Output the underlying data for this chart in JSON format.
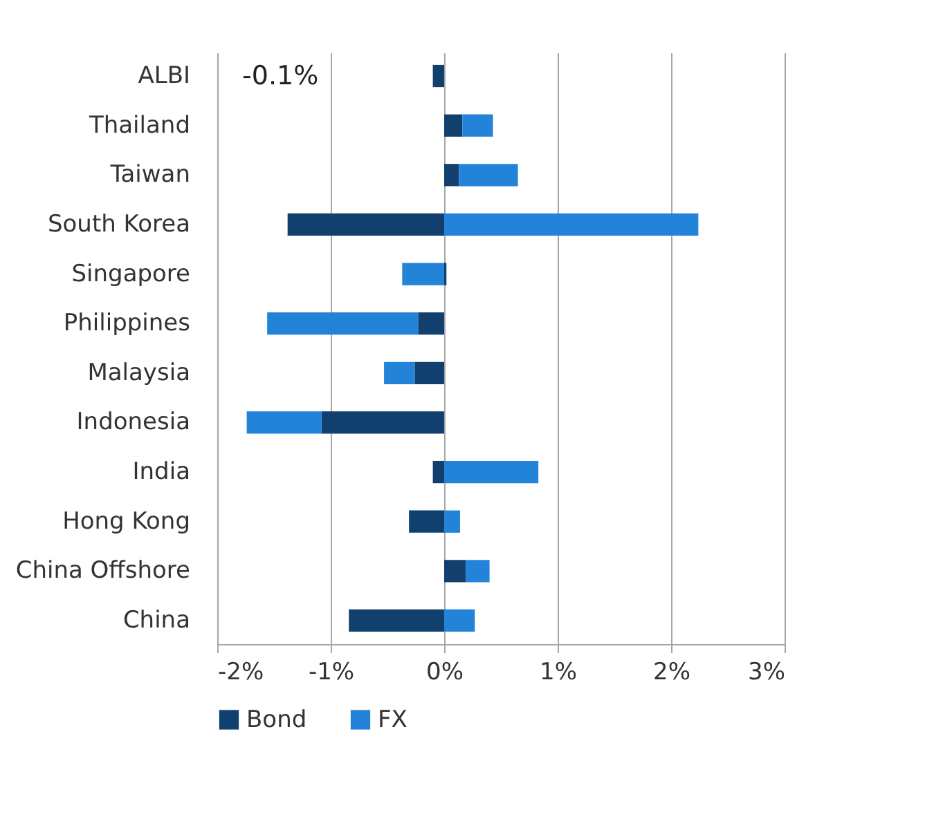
{
  "chart_data": {
    "type": "bar",
    "orientation": "horizontal",
    "stacked": true,
    "categories": [
      "ALBI",
      "Thailand",
      "Taiwan",
      "South Korea",
      "Singapore",
      "Philippines",
      "Malaysia",
      "Indonesia",
      "India",
      "Hong Kong",
      "China Offshore",
      "China"
    ],
    "series": [
      {
        "name": "Bond",
        "color": "#12406e",
        "values": [
          -0.1,
          0.16,
          0.13,
          -1.38,
          0.02,
          -0.23,
          -0.26,
          -1.08,
          -0.1,
          -0.31,
          0.19,
          -0.84
        ]
      },
      {
        "name": "FX",
        "color": "#2383d9",
        "values": [
          null,
          0.27,
          0.52,
          2.24,
          -0.37,
          -1.33,
          -0.27,
          -0.66,
          0.83,
          0.14,
          0.21,
          0.27
        ]
      }
    ],
    "xlim": [
      -2,
      3
    ],
    "xticks": [
      {
        "value": -2,
        "label": "-2%"
      },
      {
        "value": -1,
        "label": "-1%"
      },
      {
        "value": 0,
        "label": "0%"
      },
      {
        "value": 1,
        "label": "1%"
      },
      {
        "value": 2,
        "label": "2%"
      },
      {
        "value": 3,
        "label": "3%"
      }
    ],
    "annotations": [
      "-0.1%"
    ],
    "grid": "x",
    "legend": "bottom"
  }
}
